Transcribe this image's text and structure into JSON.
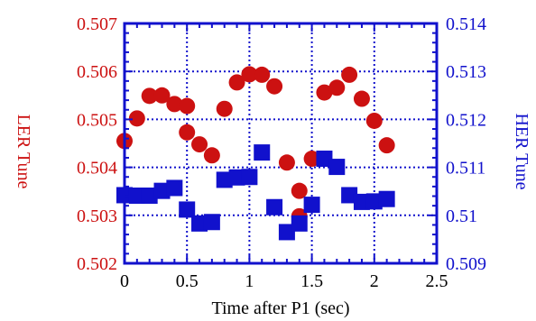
{
  "chart_data": {
    "type": "scatter",
    "xlabel": "Time after P1 (sec)",
    "ylabel_left": "LER Tune",
    "ylabel_right": "HER Tune",
    "xlim": [
      0,
      2.5
    ],
    "ylim_left": [
      0.502,
      0.507
    ],
    "ylim_right": [
      0.509,
      0.514
    ],
    "x_ticks": [
      "0",
      "0.5",
      "1",
      "1.5",
      "2",
      "2.5"
    ],
    "y_left_ticks": [
      "0.502",
      "0.503",
      "0.504",
      "0.505",
      "0.506",
      "0.507"
    ],
    "y_right_ticks": [
      "0.509",
      "0.51",
      "0.511",
      "0.512",
      "0.513",
      "0.514"
    ],
    "grid": true,
    "colors": {
      "ler": "#cc1111",
      "her": "#1111cc",
      "frame": "#1111cc",
      "grid": "#1111cc"
    },
    "series": [
      {
        "axis": "left",
        "marker": "circle",
        "x": [
          0.0,
          0.1,
          0.2,
          0.3,
          0.4,
          0.5,
          0.5,
          0.6,
          0.7,
          0.8,
          0.9,
          1.0,
          1.1,
          1.2,
          1.3,
          1.4,
          1.4,
          1.5,
          1.6,
          1.7,
          1.8,
          1.9,
          2.0,
          2.1
        ],
        "y": [
          0.50455,
          0.50502,
          0.50549,
          0.5055,
          0.50532,
          0.50528,
          0.50473,
          0.50448,
          0.50425,
          0.50522,
          0.50577,
          0.50594,
          0.50593,
          0.50569,
          0.5041,
          0.50351,
          0.50298,
          0.50418,
          0.50556,
          0.50566,
          0.50593,
          0.50543,
          0.50497,
          0.50446
        ]
      },
      {
        "axis": "right",
        "marker": "square",
        "x": [
          0.0,
          0.1,
          0.2,
          0.3,
          0.4,
          0.5,
          0.6,
          0.7,
          0.8,
          0.9,
          1.0,
          1.1,
          1.2,
          1.3,
          1.4,
          1.5,
          1.6,
          1.7,
          1.8,
          1.9,
          2.0,
          2.1
        ],
        "y": [
          0.51042,
          0.51041,
          0.51041,
          0.51051,
          0.51057,
          0.51012,
          0.50983,
          0.50986,
          0.51074,
          0.51079,
          0.5108,
          0.51131,
          0.51017,
          0.50965,
          0.50983,
          0.51022,
          0.51118,
          0.51101,
          0.51042,
          0.51028,
          0.51029,
          0.51034
        ]
      }
    ]
  }
}
